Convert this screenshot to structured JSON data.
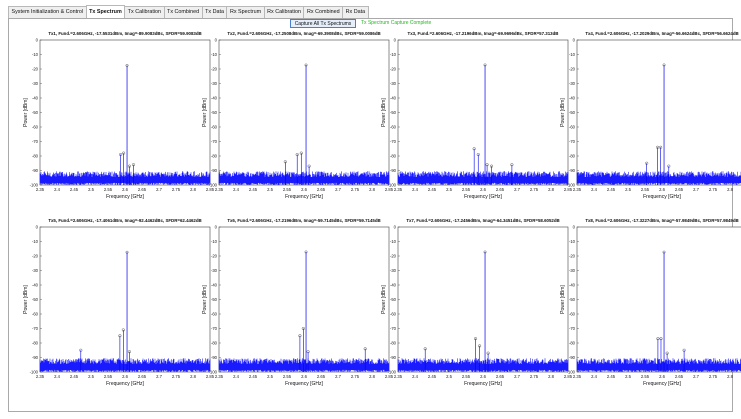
{
  "tabs": [
    {
      "label": "System Initialization & Control",
      "active": false
    },
    {
      "label": "Tx Spectrum",
      "active": true
    },
    {
      "label": "Tx Calibration",
      "active": false
    },
    {
      "label": "Tx Combined",
      "active": false
    },
    {
      "label": "Tx Data",
      "active": false
    },
    {
      "label": "Rx Spectrum",
      "active": false
    },
    {
      "label": "Rx Calibration",
      "active": false
    },
    {
      "label": "Rx Combined",
      "active": false
    },
    {
      "label": "Rx Data",
      "active": false
    }
  ],
  "toolbar": {
    "capture_label": "Capture All Tx Spectrums",
    "status_text": "Tx Spectrum Capture Complete",
    "status_color": "#22bb22"
  },
  "colors": {
    "trace": "#0000ee",
    "noise_fill": "#1a1aff",
    "marker": "#333333"
  },
  "chart_data": [
    {
      "type": "line",
      "title": "Tx1, Fund.=2.606GHz, -17.5531dBm, Imag=-89.9083dBc, SFDR=59.9083dB",
      "xlabel": "Frequency [GHz]",
      "ylabel": "Power [dBm]",
      "xlim": [
        2.35,
        2.85
      ],
      "ylim": [
        -100,
        0
      ],
      "xticks": [
        "2.35",
        "2.4",
        "2.45",
        "2.5",
        "2.55",
        "2.6",
        "2.65",
        "2.7",
        "2.75",
        "2.8",
        "2.85"
      ],
      "yticks": [
        "0",
        "-10",
        "-20",
        "-30",
        "-40",
        "-50",
        "-60",
        "-70",
        "-80",
        "-90",
        "-100"
      ],
      "grid": false,
      "fundamental": {
        "x": 2.606,
        "y": -17.5531
      },
      "spurs": [
        {
          "x": 2.587,
          "y": -79
        },
        {
          "x": 2.596,
          "y": -78
        },
        {
          "x": 2.613,
          "y": -87
        },
        {
          "x": 2.625,
          "y": -86
        }
      ],
      "noise_floor": -93
    },
    {
      "type": "line",
      "title": "Tx2, Fund.=2.606GHz, -17.2508dBm, Imag=-69.3908dBc, SFDR=59.0086dB",
      "xlabel": "Frequency [GHz]",
      "ylabel": "Power [dBm]",
      "xlim": [
        2.35,
        2.85
      ],
      "ylim": [
        -100,
        0
      ],
      "xticks": [
        "2.35",
        "2.4",
        "2.45",
        "2.5",
        "2.55",
        "2.6",
        "2.65",
        "2.7",
        "2.75",
        "2.8",
        "2.85"
      ],
      "yticks": [
        "0",
        "-10",
        "-20",
        "-30",
        "-40",
        "-50",
        "-60",
        "-70",
        "-80",
        "-90",
        "-100"
      ],
      "grid": false,
      "fundamental": {
        "x": 2.606,
        "y": -17.2508
      },
      "spurs": [
        {
          "x": 2.58,
          "y": -79
        },
        {
          "x": 2.592,
          "y": -78
        },
        {
          "x": 2.615,
          "y": -87
        },
        {
          "x": 2.545,
          "y": -84
        }
      ],
      "noise_floor": -93
    },
    {
      "type": "line",
      "title": "Tx3, Fund.=2.606GHz, -17.2196dBm, Imag=-69.9696dBc, SFDR=57.313dB",
      "xlabel": "Frequency [GHz]",
      "ylabel": "Power [dBm]",
      "xlim": [
        2.35,
        2.85
      ],
      "ylim": [
        -100,
        0
      ],
      "xticks": [
        "2.35",
        "2.4",
        "2.45",
        "2.5",
        "2.55",
        "2.6",
        "2.65",
        "2.7",
        "2.75",
        "2.8",
        "2.85"
      ],
      "yticks": [
        "0",
        "-10",
        "-20",
        "-30",
        "-40",
        "-50",
        "-60",
        "-70",
        "-80",
        "-90",
        "-100"
      ],
      "grid": false,
      "fundamental": {
        "x": 2.606,
        "y": -17.2196
      },
      "spurs": [
        {
          "x": 2.574,
          "y": -75
        },
        {
          "x": 2.586,
          "y": -79
        },
        {
          "x": 2.612,
          "y": -86
        },
        {
          "x": 2.625,
          "y": -87
        },
        {
          "x": 2.685,
          "y": -86
        }
      ],
      "noise_floor": -93
    },
    {
      "type": "line",
      "title": "Tx4, Fund.=2.606GHz, -17.2029dBm, Imag=-56.6624dBc, SFDR=56.6624dB",
      "xlabel": "Frequency [GHz]",
      "ylabel": "Power [dBm]",
      "xlim": [
        2.35,
        2.85
      ],
      "ylim": [
        -100,
        0
      ],
      "xticks": [
        "2.35",
        "2.4",
        "2.45",
        "2.5",
        "2.55",
        "2.6",
        "2.65",
        "2.7",
        "2.75",
        "2.8",
        "2.85"
      ],
      "yticks": [
        "0",
        "-10",
        "-20",
        "-30",
        "-40",
        "-50",
        "-60",
        "-70",
        "-80",
        "-90",
        "-100"
      ],
      "grid": false,
      "fundamental": {
        "x": 2.606,
        "y": -17.2029
      },
      "spurs": [
        {
          "x": 2.587,
          "y": -74
        },
        {
          "x": 2.596,
          "y": -74
        },
        {
          "x": 2.62,
          "y": -87
        },
        {
          "x": 2.555,
          "y": -85
        }
      ],
      "noise_floor": -93
    },
    {
      "type": "line",
      "title": "Tx5, Fund.=2.606GHz, -17.4061dBm, Imag=-92.4462dBc, SFDR=62.4462dB",
      "xlabel": "Frequency [GHz]",
      "ylabel": "Power [dBm]",
      "xlim": [
        2.35,
        2.85
      ],
      "ylim": [
        -100,
        0
      ],
      "xticks": [
        "2.35",
        "2.4",
        "2.45",
        "2.5",
        "2.55",
        "2.6",
        "2.65",
        "2.7",
        "2.75",
        "2.8",
        "2.85"
      ],
      "yticks": [
        "0",
        "-10",
        "-20",
        "-30",
        "-40",
        "-50",
        "-60",
        "-70",
        "-80",
        "-90",
        "-100"
      ],
      "grid": false,
      "fundamental": {
        "x": 2.606,
        "y": -17.4061
      },
      "spurs": [
        {
          "x": 2.585,
          "y": -75
        },
        {
          "x": 2.595,
          "y": -71
        },
        {
          "x": 2.613,
          "y": -86
        },
        {
          "x": 2.47,
          "y": -85
        }
      ],
      "noise_floor": -93
    },
    {
      "type": "line",
      "title": "Tx6, Fund.=2.606GHz, -17.2196dBm, Imag=-59.7145dBc, SFDR=59.7145dB",
      "xlabel": "Frequency [GHz]",
      "ylabel": "Power [dBm]",
      "xlim": [
        2.35,
        2.85
      ],
      "ylim": [
        -100,
        0
      ],
      "xticks": [
        "2.35",
        "2.4",
        "2.45",
        "2.5",
        "2.55",
        "2.6",
        "2.65",
        "2.7",
        "2.75",
        "2.8",
        "2.85"
      ],
      "yticks": [
        "0",
        "-10",
        "-20",
        "-30",
        "-40",
        "-50",
        "-60",
        "-70",
        "-80",
        "-90",
        "-100"
      ],
      "grid": false,
      "fundamental": {
        "x": 2.606,
        "y": -17.2196
      },
      "spurs": [
        {
          "x": 2.588,
          "y": -75
        },
        {
          "x": 2.598,
          "y": -70
        },
        {
          "x": 2.612,
          "y": -86
        },
        {
          "x": 2.78,
          "y": -84
        }
      ],
      "noise_floor": -93
    },
    {
      "type": "line",
      "title": "Tx7, Fund.=2.606GHz, -17.2456dBm, Imag=-64.3451dBc, SFDR=58.6052dB",
      "xlabel": "Frequency [GHz]",
      "ylabel": "Power [dBm]",
      "xlim": [
        2.35,
        2.85
      ],
      "ylim": [
        -100,
        0
      ],
      "xticks": [
        "2.35",
        "2.4",
        "2.45",
        "2.5",
        "2.55",
        "2.6",
        "2.65",
        "2.7",
        "2.75",
        "2.8",
        "2.85"
      ],
      "yticks": [
        "0",
        "-10",
        "-20",
        "-30",
        "-40",
        "-50",
        "-60",
        "-70",
        "-80",
        "-90",
        "-100"
      ],
      "grid": false,
      "fundamental": {
        "x": 2.606,
        "y": -17.2456
      },
      "spurs": [
        {
          "x": 2.578,
          "y": -77
        },
        {
          "x": 2.59,
          "y": -82
        },
        {
          "x": 2.615,
          "y": -87
        },
        {
          "x": 2.43,
          "y": -84
        }
      ],
      "noise_floor": -93
    },
    {
      "type": "line",
      "title": "Tx8, Fund.=2.606GHz, -17.3227dBm, Imag=-57.9849dBc, SFDR=57.9849dB",
      "xlabel": "Frequency [GHz]",
      "ylabel": "Power [dBm]",
      "xlim": [
        2.35,
        2.85
      ],
      "ylim": [
        -100,
        0
      ],
      "xticks": [
        "2.35",
        "2.4",
        "2.45",
        "2.5",
        "2.55",
        "2.6",
        "2.65",
        "2.7",
        "2.75",
        "2.8",
        "2.85"
      ],
      "yticks": [
        "0",
        "-10",
        "-20",
        "-30",
        "-40",
        "-50",
        "-60",
        "-70",
        "-80",
        "-90",
        "-100"
      ],
      "grid": false,
      "fundamental": {
        "x": 2.606,
        "y": -17.3227
      },
      "spurs": [
        {
          "x": 2.588,
          "y": -77
        },
        {
          "x": 2.597,
          "y": -77
        },
        {
          "x": 2.615,
          "y": -87
        },
        {
          "x": 2.665,
          "y": -85
        }
      ],
      "noise_floor": -93
    }
  ]
}
